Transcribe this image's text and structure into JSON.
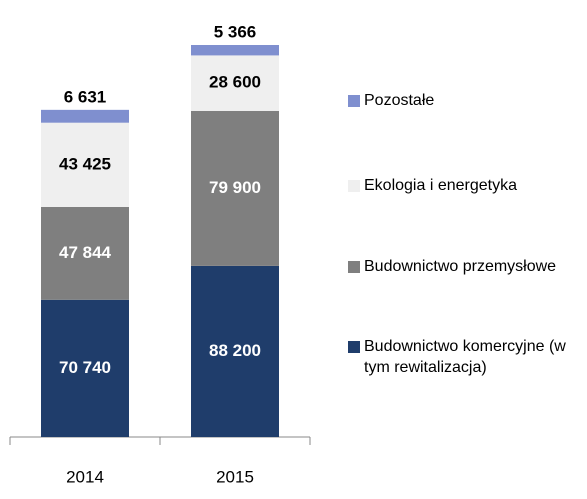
{
  "chart_data": {
    "type": "stacked-bar",
    "categories": [
      "2014",
      "2015"
    ],
    "series": [
      {
        "name": "Budownictwo komercyjne (w tym rewitalizacja)",
        "color": "#1f3d6b",
        "values": [
          70740,
          88200
        ],
        "value_labels": [
          "70 740",
          "88 200"
        ]
      },
      {
        "name": "Budownictwo przemysłowe",
        "color": "#7f7f7f",
        "values": [
          47844,
          79900
        ],
        "value_labels": [
          "47 844",
          "79 900"
        ]
      },
      {
        "name": "Ekologia i energetyka",
        "color": "#efefef",
        "values": [
          43425,
          28600
        ],
        "value_labels": [
          "43 425",
          "28 600"
        ]
      },
      {
        "name": "Pozostałe",
        "color": "#7f8fcf",
        "values": [
          6631,
          5366
        ],
        "value_labels": [
          "6 631",
          "5 366"
        ]
      }
    ]
  }
}
